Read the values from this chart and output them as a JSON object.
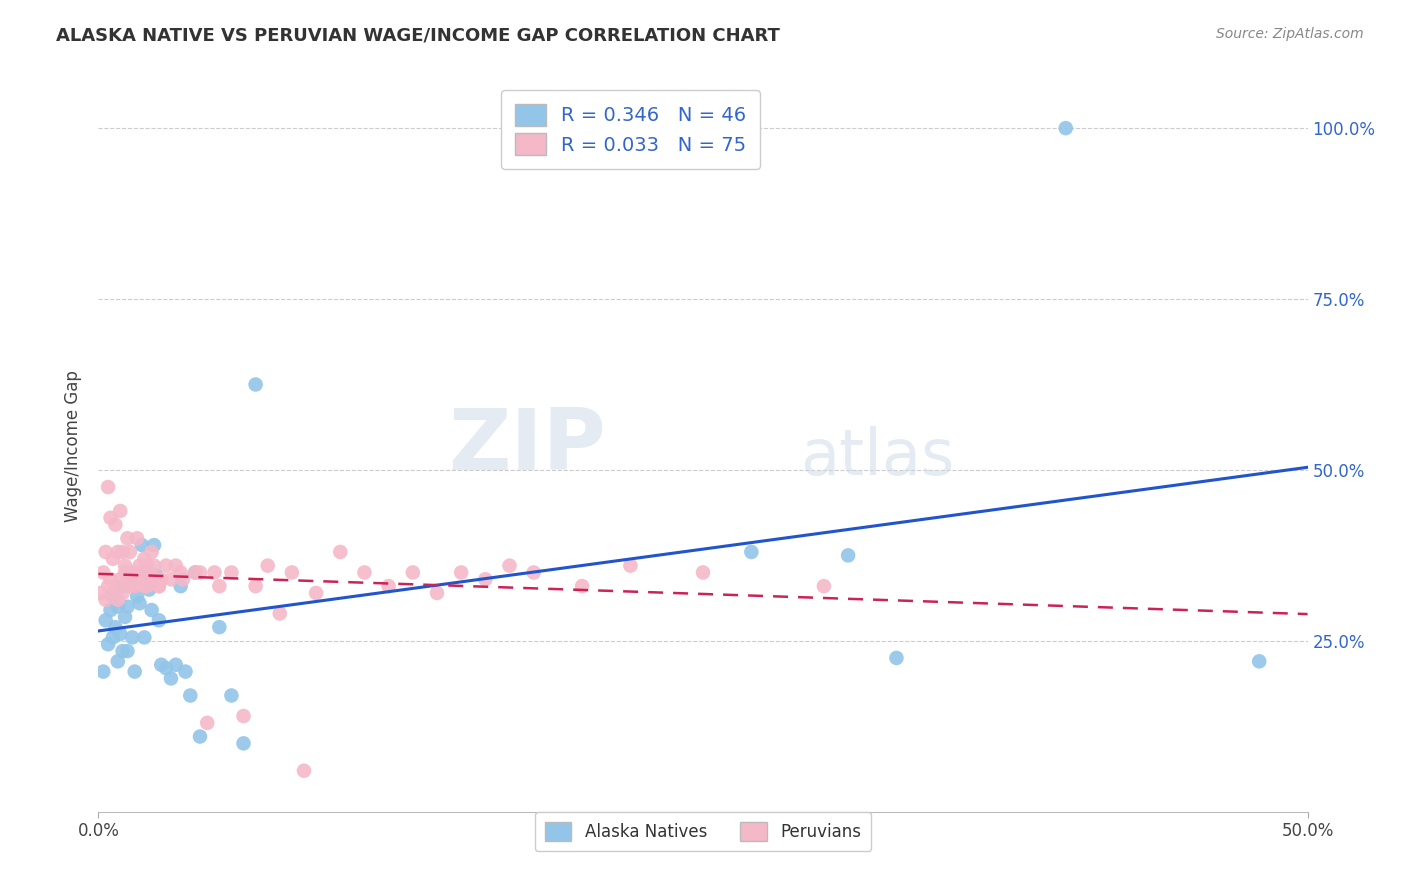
{
  "title": "ALASKA NATIVE VS PERUVIAN WAGE/INCOME GAP CORRELATION CHART",
  "source": "Source: ZipAtlas.com",
  "ylabel": "Wage/Income Gap",
  "watermark_zip": "ZIP",
  "watermark_atlas": "atlas",
  "legend_blue_r": "R = 0.346",
  "legend_blue_n": "N = 46",
  "legend_pink_r": "R = 0.033",
  "legend_pink_n": "N = 75",
  "blue_color": "#92c5e8",
  "pink_color": "#f4b8c8",
  "trend_blue_color": "#2255cc",
  "trend_pink_color": "#cc2255",
  "background": "#ffffff",
  "grid_color": "#cccccc",
  "right_tick_color": "#3366cc",
  "alaska_x": [
    0.002,
    0.003,
    0.004,
    0.005,
    0.006,
    0.006,
    0.007,
    0.008,
    0.008,
    0.009,
    0.01,
    0.01,
    0.011,
    0.012,
    0.012,
    0.013,
    0.014,
    0.015,
    0.016,
    0.017,
    0.018,
    0.019,
    0.02,
    0.021,
    0.022,
    0.023,
    0.024,
    0.025,
    0.026,
    0.028,
    0.03,
    0.032,
    0.034,
    0.036,
    0.038,
    0.04,
    0.042,
    0.05,
    0.055,
    0.06,
    0.065,
    0.27,
    0.31,
    0.33,
    0.4,
    0.48
  ],
  "alaska_y": [
    0.205,
    0.28,
    0.245,
    0.295,
    0.255,
    0.315,
    0.27,
    0.22,
    0.3,
    0.26,
    0.235,
    0.33,
    0.285,
    0.235,
    0.3,
    0.345,
    0.255,
    0.205,
    0.315,
    0.305,
    0.39,
    0.255,
    0.35,
    0.325,
    0.295,
    0.39,
    0.345,
    0.28,
    0.215,
    0.21,
    0.195,
    0.215,
    0.33,
    0.205,
    0.17,
    0.35,
    0.11,
    0.27,
    0.17,
    0.1,
    0.625,
    0.38,
    0.375,
    0.225,
    1.0,
    0.22
  ],
  "peruvian_x": [
    0.001,
    0.002,
    0.003,
    0.003,
    0.004,
    0.004,
    0.005,
    0.005,
    0.006,
    0.006,
    0.007,
    0.007,
    0.008,
    0.008,
    0.009,
    0.009,
    0.01,
    0.01,
    0.011,
    0.011,
    0.012,
    0.012,
    0.013,
    0.013,
    0.014,
    0.015,
    0.015,
    0.016,
    0.016,
    0.017,
    0.018,
    0.018,
    0.019,
    0.019,
    0.02,
    0.02,
    0.021,
    0.022,
    0.022,
    0.023,
    0.024,
    0.025,
    0.025,
    0.026,
    0.028,
    0.03,
    0.032,
    0.034,
    0.035,
    0.04,
    0.042,
    0.045,
    0.048,
    0.05,
    0.055,
    0.06,
    0.065,
    0.07,
    0.075,
    0.08,
    0.085,
    0.09,
    0.1,
    0.11,
    0.12,
    0.13,
    0.14,
    0.15,
    0.16,
    0.17,
    0.18,
    0.2,
    0.22,
    0.25,
    0.3
  ],
  "peruvian_y": [
    0.32,
    0.35,
    0.31,
    0.38,
    0.33,
    0.475,
    0.34,
    0.43,
    0.32,
    0.37,
    0.33,
    0.42,
    0.31,
    0.38,
    0.34,
    0.44,
    0.32,
    0.38,
    0.35,
    0.36,
    0.34,
    0.4,
    0.33,
    0.38,
    0.35,
    0.33,
    0.35,
    0.34,
    0.4,
    0.36,
    0.35,
    0.35,
    0.33,
    0.37,
    0.36,
    0.33,
    0.35,
    0.34,
    0.38,
    0.36,
    0.34,
    0.33,
    0.33,
    0.34,
    0.36,
    0.34,
    0.36,
    0.35,
    0.34,
    0.35,
    0.35,
    0.13,
    0.35,
    0.33,
    0.35,
    0.14,
    0.33,
    0.36,
    0.29,
    0.35,
    0.06,
    0.32,
    0.38,
    0.35,
    0.33,
    0.35,
    0.32,
    0.35,
    0.34,
    0.36,
    0.35,
    0.33,
    0.36,
    0.35,
    0.33
  ],
  "xlim": [
    0.0,
    0.5
  ],
  "ylim": [
    0.0,
    1.07
  ],
  "ytick_vals": [
    0.25,
    0.5,
    0.75,
    1.0
  ],
  "ytick_labels": [
    "25.0%",
    "50.0%",
    "75.0%",
    "100.0%"
  ],
  "xtick_vals": [
    0.0,
    0.5
  ],
  "xtick_labels": [
    "0.0%",
    "50.0%"
  ]
}
